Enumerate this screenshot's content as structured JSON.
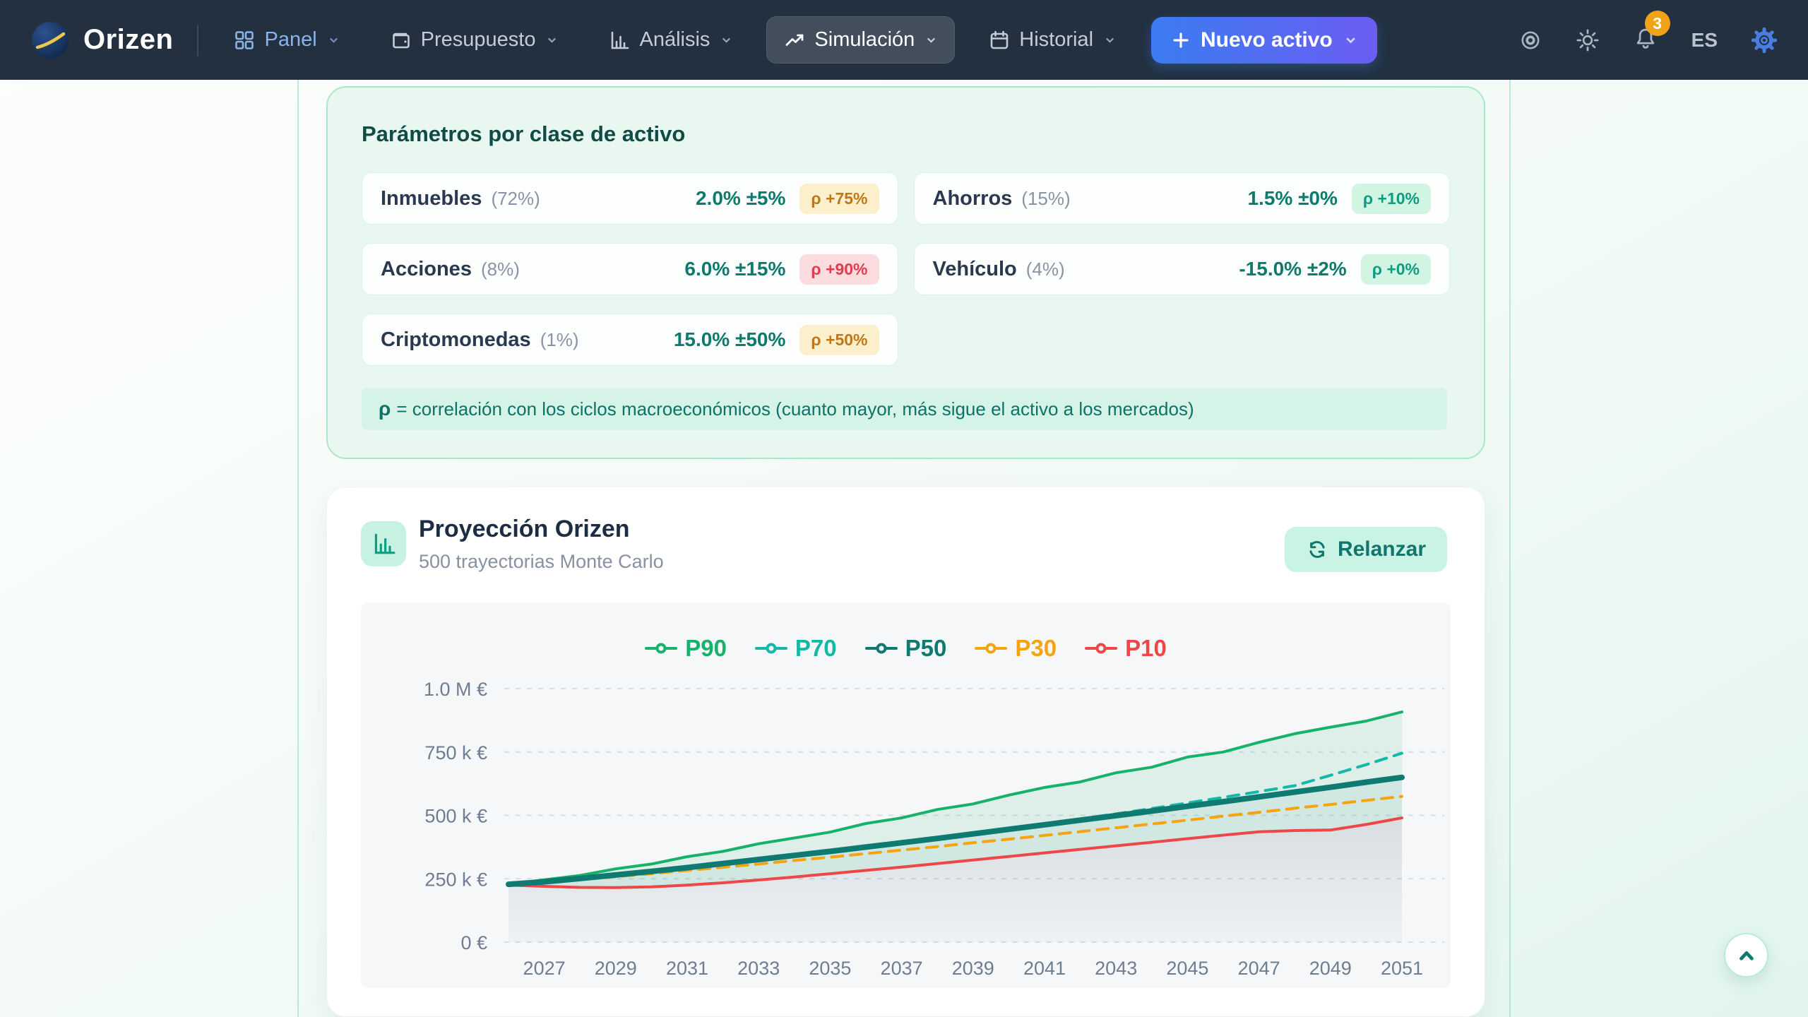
{
  "brand": {
    "name": "Orizen"
  },
  "nav": {
    "items": [
      {
        "label": "Panel",
        "icon": "dashboard-grid"
      },
      {
        "label": "Presupuesto",
        "icon": "wallet"
      },
      {
        "label": "Análisis",
        "icon": "bar-chart"
      },
      {
        "label": "Simulación",
        "icon": "trending-up",
        "active": true
      },
      {
        "label": "Historial",
        "icon": "calendar"
      }
    ],
    "new_asset_label": "Nuevo activo",
    "notification_count": "3",
    "language": "ES"
  },
  "colors": {
    "navbar_bg": "#22303f",
    "accent_teal": "#0f766e",
    "mint_card_bg": "#e8f8f1",
    "button_gradient_start": "#3b7cf2",
    "button_gradient_end": "#6b5df3",
    "badge_count_bg": "#f0a219"
  },
  "parameters_card": {
    "title": "Parámetros por clase de activo",
    "rows": [
      {
        "name": "Inmuebles",
        "weight": "(72%)",
        "value": "2.0% ±5%",
        "badge": "ρ +75%",
        "badge_color": "yellow"
      },
      {
        "name": "Ahorros",
        "weight": "(15%)",
        "value": "1.5% ±0%",
        "badge": "ρ +10%",
        "badge_color": "green"
      },
      {
        "name": "Acciones",
        "weight": "(8%)",
        "value": "6.0% ±15%",
        "badge": "ρ +90%",
        "badge_color": "red"
      },
      {
        "name": "Vehículo",
        "weight": "(4%)",
        "value": "-15.0% ±2%",
        "badge": "ρ +0%",
        "badge_color": "green"
      },
      {
        "name": "Criptomonedas",
        "weight": "(1%)",
        "value": "15.0% ±50%",
        "badge": "ρ +50%",
        "badge_color": "yellow"
      }
    ],
    "note_symbol": "ρ",
    "note_text": "= correlación con los ciclos macroeconómicos (cuanto mayor, más sigue el activo a los mercados)"
  },
  "projection_card": {
    "title": "Proyección Orizen",
    "subtitle": "500 trayectorias Monte Carlo",
    "rerun_label": "Relanzar"
  },
  "chart_data": {
    "type": "line",
    "title": "Proyección Orizen",
    "subtitle": "500 trayectorias Monte Carlo",
    "unit": "k€",
    "y_max": 1000,
    "grid": true,
    "legend_position": "top",
    "x": [
      2026,
      2027,
      2028,
      2029,
      2030,
      2031,
      2032,
      2033,
      2034,
      2035,
      2036,
      2037,
      2038,
      2039,
      2040,
      2041,
      2042,
      2043,
      2044,
      2045,
      2046,
      2047,
      2048,
      2049,
      2050,
      2051
    ],
    "x_ticks": [
      2027,
      2029,
      2031,
      2033,
      2035,
      2037,
      2039,
      2041,
      2043,
      2045,
      2047,
      2049,
      2051
    ],
    "y_ticks": [
      {
        "value": 0,
        "label": "0 €"
      },
      {
        "value": 250,
        "label": "250 k €"
      },
      {
        "value": 500,
        "label": "500 k €"
      },
      {
        "value": 750,
        "label": "750 k €"
      },
      {
        "value": 1000,
        "label": "1.0 M €"
      }
    ],
    "series": [
      {
        "name": "P90",
        "color": "#17b26a",
        "style": "solid",
        "width": 4,
        "values": [
          228,
          246,
          263,
          289,
          308,
          337,
          358,
          388,
          411,
          434,
          468,
          490,
          523,
          545,
          580,
          610,
          632,
          668,
          690,
          730,
          750,
          788,
          822,
          848,
          872,
          908
        ]
      },
      {
        "name": "P70",
        "color": "#14b8a6",
        "style": "dashed",
        "width": 4,
        "values": [
          228,
          241,
          254,
          268,
          282,
          296,
          311,
          326,
          342,
          358,
          375,
          392,
          410,
          428,
          447,
          466,
          486,
          506,
          527,
          549,
          571,
          594,
          617,
          658,
          700,
          745
        ]
      },
      {
        "name": "P50",
        "color": "#0e7a71",
        "style": "solid",
        "width": 8,
        "emphasis": true,
        "values": [
          228,
          238,
          251,
          265,
          279,
          294,
          310,
          326,
          342,
          358,
          375,
          392,
          409,
          427,
          445,
          463,
          481,
          499,
          517,
          536,
          554,
          573,
          592,
          611,
          631,
          650
        ]
      },
      {
        "name": "P30",
        "color": "#f5a40f",
        "style": "dashed",
        "width": 4,
        "values": [
          228,
          237,
          247,
          258,
          270,
          283,
          295,
          308,
          322,
          335,
          349,
          363,
          377,
          392,
          406,
          421,
          436,
          451,
          466,
          481,
          497,
          512,
          528,
          543,
          559,
          575
        ]
      },
      {
        "name": "P10",
        "color": "#ee4747",
        "style": "solid",
        "width": 4,
        "values": [
          225,
          220,
          216,
          215,
          218,
          225,
          234,
          245,
          257,
          270,
          283,
          296,
          310,
          324,
          338,
          352,
          366,
          380,
          394,
          408,
          422,
          435,
          440,
          442,
          464,
          490
        ]
      }
    ]
  }
}
